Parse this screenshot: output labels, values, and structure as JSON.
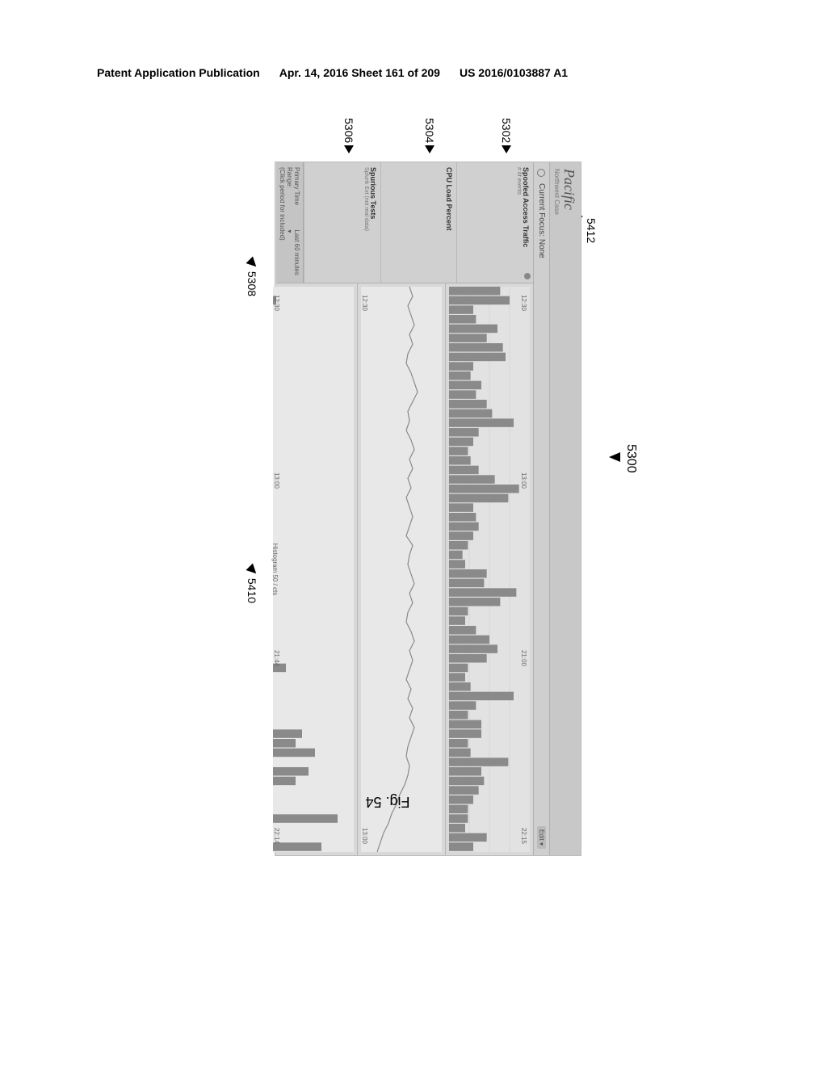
{
  "page_header": {
    "left": "Patent Application Publication",
    "center": "Apr. 14, 2016  Sheet 161 of 209",
    "right": "US 2016/0103887 A1"
  },
  "figure_caption": "Fig. 54",
  "reference_labels": {
    "main": "5300",
    "focus_icon": "5412",
    "panel1": "5302",
    "panel2": "5304",
    "panel3": "5306",
    "footer": "5308",
    "histogram_label": "5410"
  },
  "dashboard": {
    "brand": "Pacific",
    "brand_sub": "Northwest Case",
    "focus_prefix": "Current Focus: None",
    "edit_label": "Edit ▾",
    "panels": [
      {
        "title": "Spoofed Access Traffic",
        "sub": "# of events",
        "id": "spoofed-panel"
      },
      {
        "title": "CPU Load Percent",
        "sub": "",
        "id": "cpu-panel"
      },
      {
        "title": "Spurious Tests",
        "sub": "Splunk Ext (not real data)",
        "id": "spurious-panel"
      }
    ],
    "footer": {
      "time_range_label": "Primary Time Range:",
      "time_range_value": "Last 60 minutes ▾",
      "secondary": "(Click period for included)"
    },
    "chart1": {
      "type": "bar",
      "bar_color": "#8a8a8a",
      "background": "#e2e2e2",
      "grid_color": "#c8c8c8",
      "xlim": [
        0,
        60
      ],
      "ylim": [
        0,
        60
      ],
      "time_ticks": [
        "12:30",
        "13:00",
        "21:00",
        "22:15"
      ],
      "values": [
        38,
        45,
        18,
        20,
        36,
        28,
        40,
        42,
        18,
        16,
        24,
        20,
        28,
        32,
        48,
        22,
        18,
        14,
        16,
        22,
        34,
        52,
        44,
        18,
        20,
        22,
        18,
        14,
        10,
        12,
        28,
        26,
        50,
        38,
        14,
        12,
        20,
        30,
        36,
        28,
        14,
        12,
        16,
        48,
        20,
        14,
        24,
        24,
        14,
        16,
        44,
        24,
        26,
        22,
        18,
        14,
        14,
        12,
        28,
        18
      ]
    },
    "chart2": {
      "type": "line",
      "line_color": "#8a8a8a",
      "background": "#e8e8e8",
      "xlim": [
        0,
        60
      ],
      "ylim": [
        0,
        100
      ],
      "time_ticks": [
        "12:30",
        "13:00"
      ],
      "values": [
        60,
        64,
        58,
        62,
        66,
        60,
        64,
        58,
        56,
        62,
        66,
        70,
        64,
        58,
        60,
        56,
        62,
        66,
        60,
        64,
        58,
        62,
        56,
        60,
        64,
        60,
        56,
        64,
        60,
        58,
        62,
        66,
        60,
        64,
        58,
        56,
        62,
        66,
        60,
        64,
        60,
        56,
        62,
        58,
        64,
        60,
        66,
        62,
        58,
        56,
        60,
        58,
        54,
        48,
        44,
        38,
        34,
        28,
        24,
        20
      ]
    },
    "chart3": {
      "type": "histogram",
      "bar_color": "#8a8a8a",
      "background": "#e8e8e8",
      "xlabel": "Histogram 50 / cts",
      "xlim": [
        0,
        60
      ],
      "ylim": [
        0,
        50
      ],
      "time_ticks": [
        "12:30",
        "13:00",
        "21:44",
        "22:14"
      ],
      "groups": [
        [
          0,
          2,
          0,
          0,
          0,
          0,
          0,
          0,
          0,
          0,
          0,
          0,
          0,
          0,
          0,
          0,
          0,
          0,
          0,
          0,
          0,
          0,
          0,
          0,
          0,
          0,
          0,
          0,
          0,
          0,
          0,
          0,
          0,
          0,
          0,
          0,
          0,
          0,
          0,
          0,
          8,
          0,
          0,
          0,
          0,
          0,
          0,
          18,
          14,
          26,
          0,
          22,
          14,
          0,
          0,
          0,
          40,
          0,
          0,
          30
        ]
      ]
    }
  },
  "colors": {
    "page_bg": "#ffffff",
    "dash_bg": "#d8d8d8",
    "text": "#333333"
  }
}
